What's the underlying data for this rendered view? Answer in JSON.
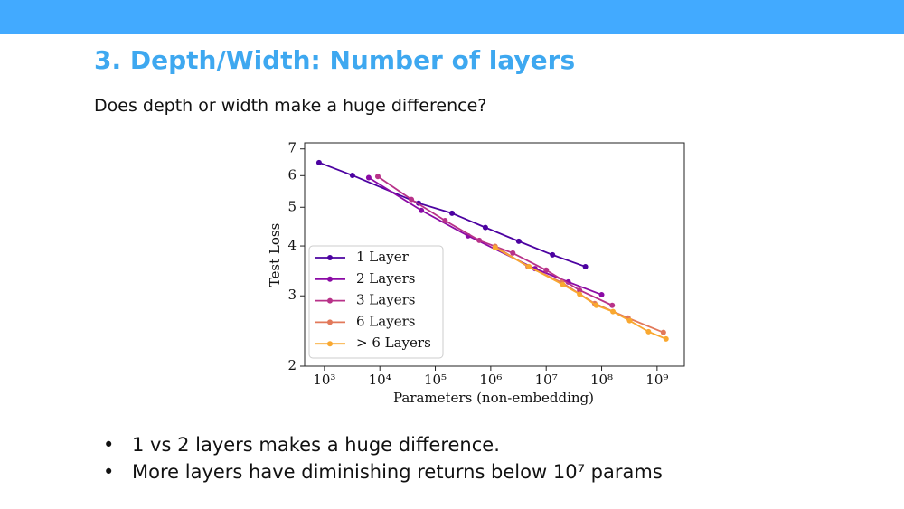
{
  "title": "3. Depth/Width: Number of layers",
  "subtitle": "Does depth or width make a huge difference?",
  "bullets": [
    "1 vs 2 layers makes a huge difference.",
    "More layers have diminishing returns below 10⁷ params"
  ],
  "chart_data": {
    "type": "line",
    "x_label": "Parameters (non-embedding)",
    "y_label": "Test Loss",
    "xscale": "log",
    "yscale": "log",
    "xlim": [
      440,
      3100000000
    ],
    "ylim": [
      2,
      7.25
    ],
    "xticks": [
      {
        "value": 1000,
        "label": "10³"
      },
      {
        "value": 10000,
        "label": "10⁴"
      },
      {
        "value": 100000,
        "label": "10⁵"
      },
      {
        "value": 1000000,
        "label": "10⁶"
      },
      {
        "value": 10000000,
        "label": "10⁷"
      },
      {
        "value": 100000000,
        "label": "10⁸"
      },
      {
        "value": 1000000000,
        "label": "10⁹"
      }
    ],
    "yticks": [
      2,
      3,
      4,
      5,
      6,
      7
    ],
    "legend": "lower-left",
    "series": [
      {
        "name": "1 Layer",
        "color": "#4c02a1",
        "x": [
          800,
          3200,
          50000,
          200000,
          800000,
          3200000,
          13000000,
          51000000
        ],
        "values": [
          6.47,
          6.01,
          5.12,
          4.83,
          4.45,
          4.11,
          3.8,
          3.55
        ]
      },
      {
        "name": "2 Layers",
        "color": "#8b0aa5",
        "x": [
          6300,
          56000,
          390000,
          6300000,
          25000000,
          100000000
        ],
        "values": [
          5.93,
          4.91,
          4.24,
          3.51,
          3.25,
          3.02
        ]
      },
      {
        "name": "3 Layers",
        "color": "#b83289",
        "x": [
          9200,
          37000,
          150000,
          620000,
          2500000,
          10000000,
          40000000,
          155000000
        ],
        "values": [
          5.97,
          5.23,
          4.63,
          4.13,
          3.84,
          3.48,
          3.1,
          2.84
        ]
      },
      {
        "name": "6 Layers",
        "color": "#e2795a",
        "x": [
          1200000,
          4700000,
          19000000,
          75000000,
          300000000,
          1300000000
        ],
        "values": [
          3.99,
          3.55,
          3.24,
          2.87,
          2.64,
          2.43
        ]
      },
      {
        "name": "> 6 Layers",
        "color": "#f9a830",
        "x": [
          1200000,
          4900000,
          20000000,
          40000000,
          80000000,
          160000000,
          320000000,
          700000000,
          1450000000
        ],
        "values": [
          3.96,
          3.55,
          3.2,
          3.03,
          2.84,
          2.74,
          2.6,
          2.44,
          2.34
        ]
      }
    ]
  }
}
